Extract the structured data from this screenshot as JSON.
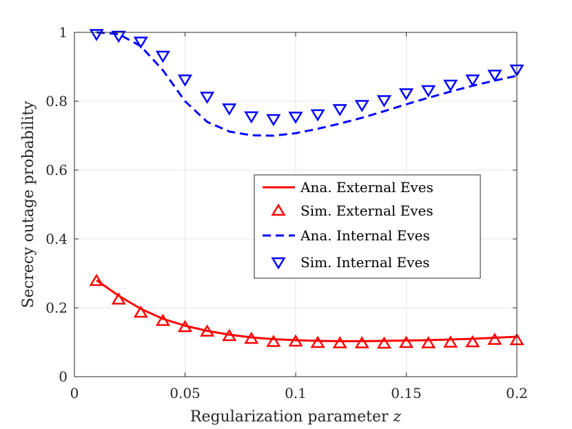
{
  "chart_data": {
    "type": "line",
    "title": "",
    "xlabel": "Regularization parameter",
    "xlabel_var": "z",
    "ylabel": "Secrecy outage probability",
    "xlim": [
      0,
      0.2
    ],
    "ylim": [
      0,
      1
    ],
    "xticks": [
      0,
      0.05,
      0.1,
      0.15,
      0.2
    ],
    "xtick_labels": [
      "0",
      "0.05",
      "0.1",
      "0.15",
      "0.2"
    ],
    "yticks": [
      0,
      0.2,
      0.4,
      0.6,
      0.8,
      1
    ],
    "ytick_labels": [
      "0",
      "0.2",
      "0.4",
      "0.6",
      "0.8",
      "1"
    ],
    "grid": true,
    "legend_position": "center-right",
    "series": [
      {
        "name": "Ana. External Eves",
        "style": "solid-line",
        "color": "#ff0000",
        "x": [
          0.01,
          0.02,
          0.03,
          0.04,
          0.05,
          0.06,
          0.07,
          0.08,
          0.09,
          0.1,
          0.11,
          0.12,
          0.13,
          0.14,
          0.15,
          0.16,
          0.17,
          0.18,
          0.19,
          0.2
        ],
        "y": [
          0.28,
          0.235,
          0.197,
          0.168,
          0.148,
          0.133,
          0.122,
          0.114,
          0.109,
          0.106,
          0.104,
          0.103,
          0.103,
          0.104,
          0.105,
          0.106,
          0.108,
          0.11,
          0.113,
          0.116
        ]
      },
      {
        "name": "Sim. External Eves",
        "style": "triangle-up-marker",
        "color": "#ff0000",
        "x": [
          0.01,
          0.02,
          0.03,
          0.04,
          0.05,
          0.06,
          0.07,
          0.08,
          0.09,
          0.1,
          0.11,
          0.12,
          0.13,
          0.14,
          0.15,
          0.16,
          0.17,
          0.18,
          0.19,
          0.2
        ],
        "y": [
          0.278,
          0.224,
          0.186,
          0.162,
          0.144,
          0.131,
          0.118,
          0.11,
          0.101,
          0.102,
          0.098,
          0.097,
          0.097,
          0.096,
          0.098,
          0.097,
          0.099,
          0.1,
          0.107,
          0.106
        ]
      },
      {
        "name": "Ana. Internal Eves",
        "style": "dashed-line",
        "color": "#0000ff",
        "x": [
          0.01,
          0.02,
          0.03,
          0.04,
          0.05,
          0.06,
          0.07,
          0.08,
          0.09,
          0.1,
          0.11,
          0.12,
          0.13,
          0.14,
          0.15,
          0.16,
          0.17,
          0.18,
          0.19,
          0.2
        ],
        "y": [
          1.0,
          0.995,
          0.96,
          0.89,
          0.8,
          0.74,
          0.712,
          0.701,
          0.7,
          0.707,
          0.72,
          0.735,
          0.752,
          0.771,
          0.791,
          0.81,
          0.828,
          0.845,
          0.86,
          0.874
        ]
      },
      {
        "name": "Sim. Internal Eves",
        "style": "triangle-down-marker",
        "color": "#0000ff",
        "x": [
          0.01,
          0.02,
          0.03,
          0.04,
          0.05,
          0.06,
          0.07,
          0.08,
          0.09,
          0.1,
          0.11,
          0.12,
          0.13,
          0.14,
          0.15,
          0.16,
          0.17,
          0.18,
          0.19,
          0.2
        ],
        "y": [
          0.995,
          0.99,
          0.973,
          0.932,
          0.863,
          0.813,
          0.779,
          0.756,
          0.748,
          0.755,
          0.762,
          0.777,
          0.789,
          0.803,
          0.823,
          0.832,
          0.848,
          0.863,
          0.877,
          0.892
        ]
      }
    ]
  }
}
